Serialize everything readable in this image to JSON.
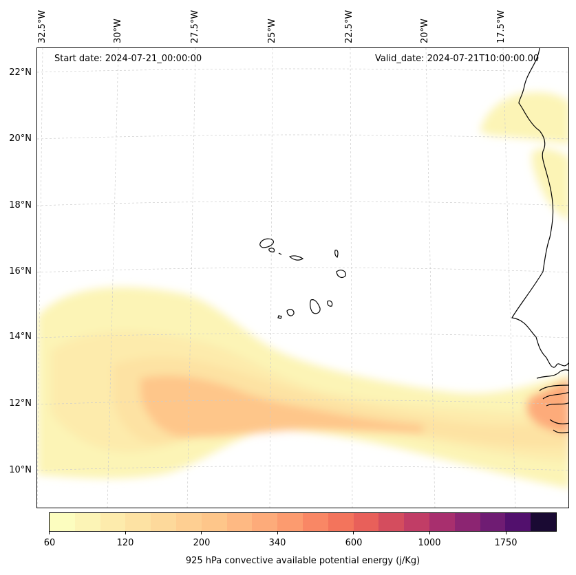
{
  "start_date": "Start date: 2024-07-21_00:00:00",
  "valid_date": "Valid_date: 2024-07-21T10:00:00.00",
  "lat_labels": [
    "22°N",
    "20°N",
    "18°N",
    "16°N",
    "14°N",
    "12°N",
    "10°N"
  ],
  "lon_labels": [
    "32.5°W",
    "30°W",
    "27.5°W",
    "25°W",
    "22.5°W",
    "20°W",
    "17.5°W"
  ],
  "colorbar": {
    "label": "925 hPa convective available potential energy (j/Kg)",
    "ticks": [
      "60",
      "120",
      "200",
      "340",
      "600",
      "1000",
      "1750"
    ],
    "colors": [
      "#fcfdbf",
      "#fcf4b6",
      "#fdebac",
      "#fde2a3",
      "#fdd99b",
      "#fecf92",
      "#fec68a",
      "#feb983",
      "#fdab7a",
      "#fc9b6f",
      "#f98765",
      "#f3745c",
      "#e8605a",
      "#d44d5e",
      "#c13d66",
      "#a82f6e",
      "#8c2572",
      "#6f1c73",
      "#52106d",
      "#1a0a33"
    ]
  },
  "map_data": {
    "type": "filled-contour map",
    "variable": "925 hPa convective available potential energy",
    "units": "j/Kg",
    "lat_range": [
      9,
      22.8
    ],
    "lon_range": [
      -32.6,
      -16.8
    ],
    "gridlines": true,
    "regions": [
      {
        "name": "Atlantic CAPE band",
        "lon": [
          -32.5,
          -17.2
        ],
        "lat": [
          9.5,
          15.2
        ],
        "max_value": 340
      },
      {
        "name": "Coastal West Africa maximum",
        "lon": [
          -18,
          -16.8
        ],
        "lat": [
          10.8,
          13.2
        ],
        "max_value": 600
      },
      {
        "name": "Mauritania coast",
        "lon": [
          -19.6,
          -16.9
        ],
        "lat": [
          20.3,
          21.5
        ],
        "max_value": 120
      }
    ],
    "features": [
      "Cape Verde islands",
      "West African coastline"
    ]
  }
}
